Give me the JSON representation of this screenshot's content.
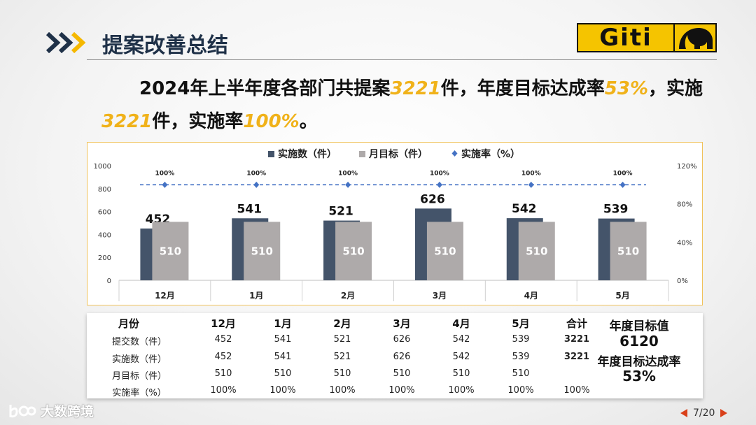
{
  "header": {
    "title": "提案改善总结",
    "logo_text": "Giti"
  },
  "summary": {
    "p1": "2024年上半年度各部门共提案",
    "v1": "3221",
    "p2": "件，年度目标达成率",
    "v2": "53%",
    "p3": "，实施",
    "v3": "3221",
    "p4": "件，实施率",
    "v4": "100%",
    "p5": "。"
  },
  "colors": {
    "series_actual": "#44546a",
    "series_target": "#aeaaaa",
    "series_rate": "#4472c4",
    "highlight": "#f0b21a"
  },
  "chart_data": {
    "type": "bar",
    "categories": [
      "12月",
      "1月",
      "2月",
      "3月",
      "4月",
      "5月"
    ],
    "series": [
      {
        "name": "实施数（件）",
        "type": "bar",
        "axis": "left",
        "values": [
          452,
          541,
          521,
          626,
          542,
          539
        ]
      },
      {
        "name": "月目标（件）",
        "type": "bar",
        "axis": "left",
        "values": [
          510,
          510,
          510,
          510,
          510,
          510
        ]
      },
      {
        "name": "实施率（%）",
        "type": "line",
        "axis": "right",
        "values": [
          100,
          100,
          100,
          100,
          100,
          100
        ]
      }
    ],
    "point_labels": [
      "100%",
      "100%",
      "100%",
      "100%",
      "100%",
      "100%"
    ],
    "y_left": {
      "min": 0,
      "max": 1000,
      "ticks": [
        "0",
        "200",
        "400",
        "600",
        "800",
        "1000"
      ]
    },
    "y_right": {
      "min": 0,
      "max": 120,
      "ticks": [
        "0%",
        "40%",
        "80%",
        "120%"
      ]
    },
    "legend": "top",
    "grid": false
  },
  "table": {
    "header": [
      "月份",
      "12月",
      "1月",
      "2月",
      "3月",
      "4月",
      "5月",
      "合计"
    ],
    "rows": [
      {
        "label": "提交数（件）",
        "values": [
          "452",
          "541",
          "521",
          "626",
          "542",
          "539"
        ],
        "total": "3221"
      },
      {
        "label": "实施数（件）",
        "values": [
          "452",
          "541",
          "521",
          "626",
          "542",
          "539"
        ],
        "total": "3221"
      },
      {
        "label": "月目标（件）",
        "values": [
          "510",
          "510",
          "510",
          "510",
          "510",
          "510"
        ],
        "total": ""
      },
      {
        "label": "实施率（%）",
        "values": [
          "100%",
          "100%",
          "100%",
          "100%",
          "100%",
          "100%"
        ],
        "total": "100%"
      }
    ],
    "annual_target_label": "年度目标值",
    "annual_target_value": "6120",
    "annual_rate_label": "年度目标达成率",
    "annual_rate_value": "53%"
  },
  "watermark": {
    "text": "大数跨境"
  },
  "pager": {
    "text": "7/20"
  }
}
